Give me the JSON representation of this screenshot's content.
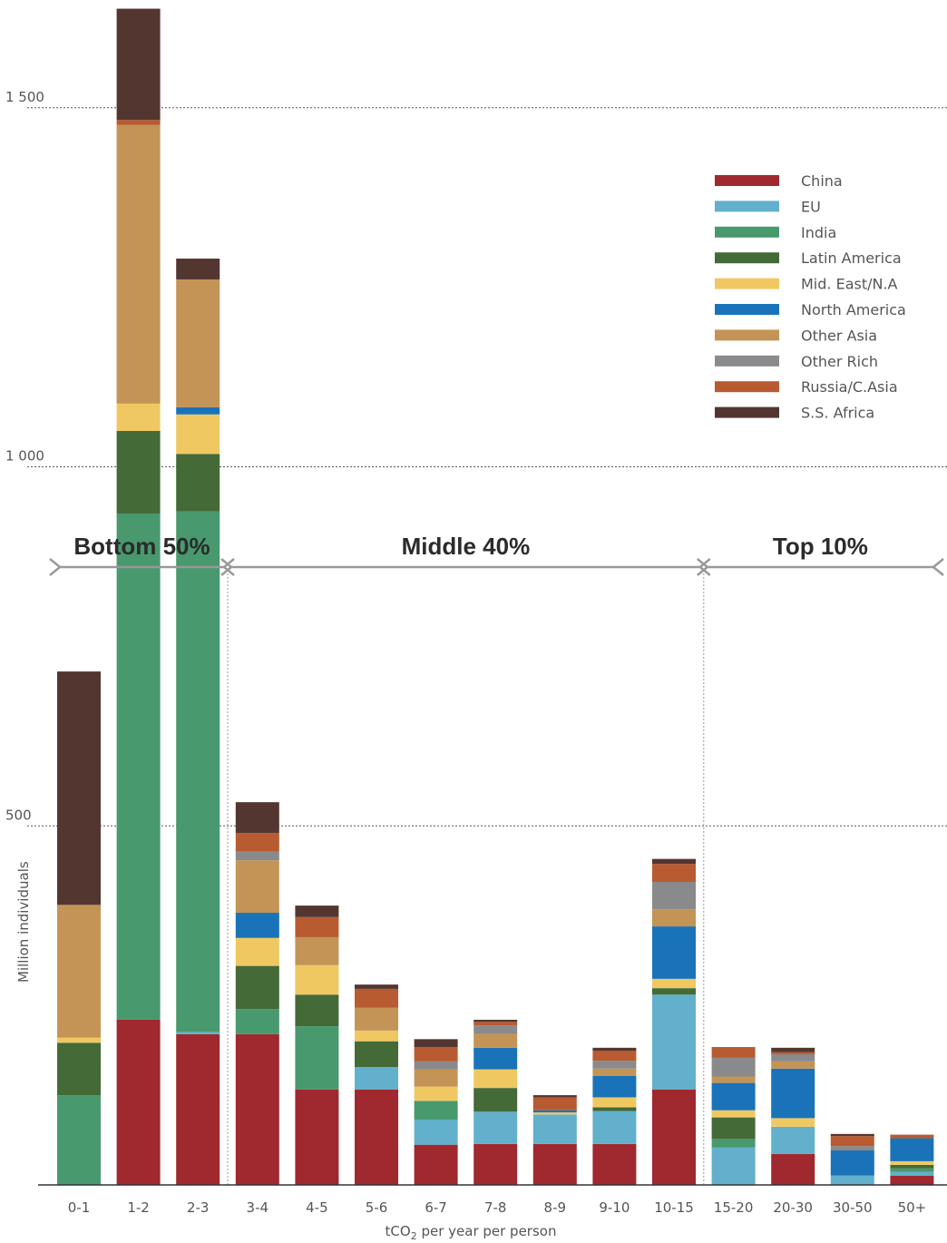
{
  "chart_data": {
    "type": "bar",
    "stacked": true,
    "categories": [
      "0-1",
      "1-2",
      "2-3",
      "3-4",
      "4-5",
      "5-6",
      "6-7",
      "7-8",
      "8-9",
      "9-10",
      "10-15",
      "15-20",
      "20-30",
      "30-50",
      "50+"
    ],
    "xlabel_main": "tCO",
    "xlabel_sub": "2",
    "xlabel_rest": " per year per person",
    "ylabel": "Million individuals",
    "ylim": [
      0,
      1640
    ],
    "yticks": [
      {
        "value": 500,
        "label": "500"
      },
      {
        "value": 1000,
        "label": "1 000"
      },
      {
        "value": 1500,
        "label": "1 500"
      }
    ],
    "grid": "dotted horizontal at ticks",
    "legend_position": "top-right",
    "series": [
      {
        "name": "China",
        "color": "#a0282f",
        "values": [
          0,
          230,
          210,
          210,
          133,
          133,
          56,
          57,
          57,
          57,
          133,
          0,
          43,
          0,
          13
        ]
      },
      {
        "name": "EU",
        "color": "#62b0cc",
        "values": [
          0,
          0,
          3,
          0,
          0,
          31,
          35,
          45,
          41,
          46,
          132,
          52,
          38,
          13,
          5
        ]
      },
      {
        "name": "India",
        "color": "#48996e",
        "values": [
          125,
          705,
          725,
          35,
          88,
          0,
          26,
          0,
          0,
          0,
          0,
          12,
          0,
          0,
          5
        ]
      },
      {
        "name": "Latin America",
        "color": "#446a38",
        "values": [
          73,
          115,
          80,
          60,
          44,
          36,
          0,
          33,
          0,
          5,
          9,
          30,
          0,
          0,
          5
        ]
      },
      {
        "name": "Mid. East/N.A",
        "color": "#f0c862",
        "values": [
          7,
          38,
          55,
          39,
          41,
          15,
          20,
          26,
          3,
          14,
          13,
          10,
          12,
          0,
          5
        ]
      },
      {
        "name": "North America",
        "color": "#1a73b8",
        "values": [
          0,
          0,
          10,
          35,
          0,
          0,
          0,
          30,
          3,
          30,
          73,
          38,
          69,
          35,
          32
        ]
      },
      {
        "name": "Other Asia",
        "color": "#c39455",
        "values": [
          185,
          388,
          178,
          73,
          39,
          32,
          24,
          19,
          0,
          10,
          24,
          9,
          10,
          0,
          0
        ]
      },
      {
        "name": "Other Rich",
        "color": "#8a8a8c",
        "values": [
          0,
          0,
          0,
          12,
          0,
          0,
          11,
          12,
          0,
          11,
          38,
          26,
          10,
          6,
          0
        ]
      },
      {
        "name": "Russia/C.Asia",
        "color": "#b85b31",
        "values": [
          0,
          7,
          0,
          26,
          28,
          26,
          20,
          5,
          18,
          14,
          25,
          15,
          3,
          14,
          5
        ]
      },
      {
        "name": "S.S. Africa",
        "color": "#543630",
        "values": [
          325,
          155,
          29,
          43,
          16,
          6,
          11,
          3,
          3,
          4,
          7,
          0,
          6,
          3,
          0
        ]
      }
    ],
    "groups": [
      {
        "label": "Bottom 50%",
        "from": "0-1",
        "to": "2-3"
      },
      {
        "label": "Middle 40%",
        "from": "3-4",
        "to": "10-15"
      },
      {
        "label": "Top 10%",
        "from": "15-20",
        "to": "50+"
      }
    ]
  }
}
